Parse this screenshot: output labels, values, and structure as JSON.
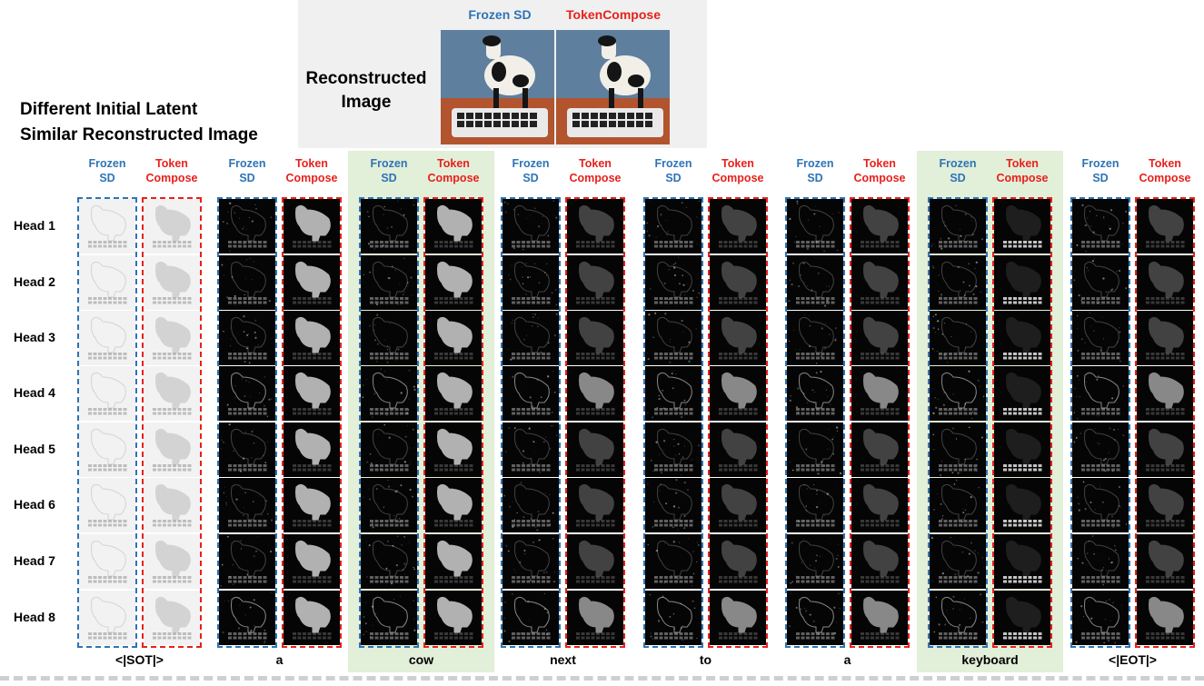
{
  "recon": {
    "label": "Reconstructed\nImage",
    "frozen_label": "Frozen SD",
    "token_label": "TokenCompose"
  },
  "headline": "Different Initial Latent\nSimilar Reconstructed Image",
  "frozen_col_label": "Frozen\nSD",
  "token_col_label": "Token\nCompose",
  "heads": [
    "Head 1",
    "Head 2",
    "Head 3",
    "Head 4",
    "Head 5",
    "Head 6",
    "Head 7",
    "Head 8"
  ],
  "tokens": [
    "<|SOT|>",
    "a",
    "cow",
    "next",
    "to",
    "a",
    "keyboard",
    "<|EOT|>"
  ],
  "highlighted_tokens": [
    "cow",
    "keyboard"
  ],
  "colors": {
    "frozen": "#2e74b5",
    "token": "#e8201b",
    "highlight": "#e2efd9",
    "recon_panel": "#f0f0f0"
  }
}
